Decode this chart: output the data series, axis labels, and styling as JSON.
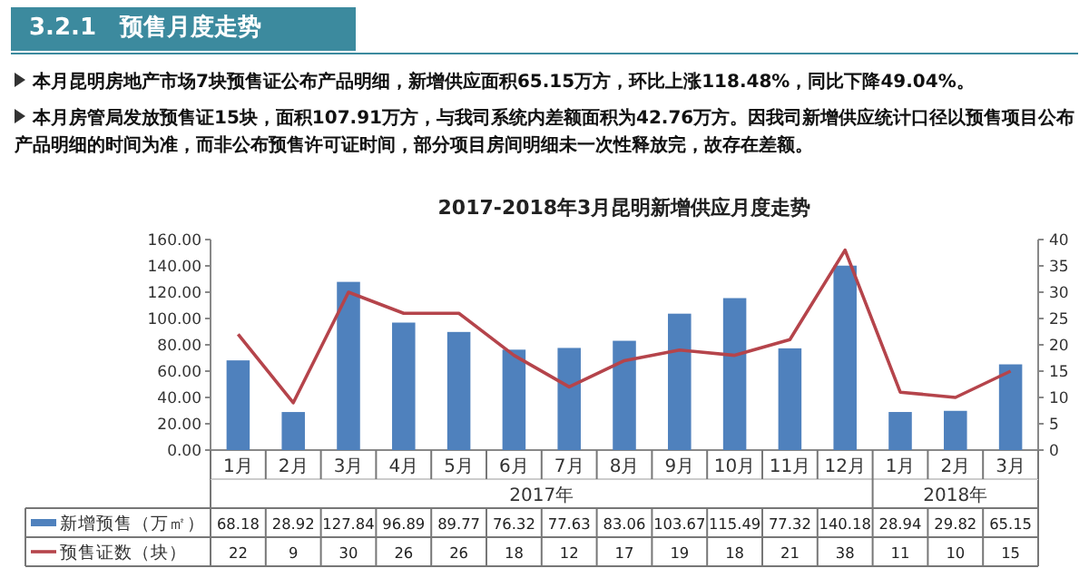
{
  "chart_data": {
    "type": "bar",
    "title": "2017-2018年3月昆明新增供应月度走势",
    "annotations": [
      "3.2.1　预售月度走势",
      "本月昆明房地产市场7块预售证公布产品明细，新增供应面积65.15万方，环比上涨118.48%，同比下降49.04%。",
      "本月房管局发放预售证15块，面积107.91万方，与我司系统内差额面积为42.76万方。因我司新增供应统计口径以预售项目公布产品明细的时间为准，而非公布预售许可证时间，部分项目房间明细未一次性释放完，故存在差额。",
      "2017年",
      "2018年"
    ],
    "categories": [
      "1月",
      "2月",
      "3月",
      "4月",
      "5月",
      "6月",
      "7月",
      "8月",
      "9月",
      "10月",
      "11月",
      "12月",
      "1月",
      "2月",
      "3月"
    ],
    "series": [
      {
        "name": "新增预售（万㎡）",
        "color": "#4f81bd",
        "values": [
          68.18,
          28.92,
          127.84,
          96.89,
          89.77,
          76.32,
          77.63,
          83.06,
          103.67,
          115.49,
          77.32,
          140.18,
          28.94,
          29.82,
          65.15
        ]
      },
      {
        "name": "预售证数（块）",
        "type": "line",
        "axis": "y2",
        "color": "#b5444b",
        "values": [
          22,
          9,
          30,
          26,
          26,
          18,
          12,
          17,
          19,
          18,
          21,
          38,
          11,
          10,
          15
        ]
      }
    ],
    "ylim": [
      0,
      160
    ],
    "yticks": [
      {
        "value": 0,
        "label": "0.00"
      },
      {
        "value": 20,
        "label": "20.00"
      },
      {
        "value": 40,
        "label": "40.00"
      },
      {
        "value": 60,
        "label": "60.00"
      },
      {
        "value": 80,
        "label": "80.00"
      },
      {
        "value": 100,
        "label": "100.00"
      },
      {
        "value": 120,
        "label": "120.00"
      },
      {
        "value": 140,
        "label": "140.00"
      },
      {
        "value": 160,
        "label": "160.00"
      }
    ],
    "y2lim": [
      0,
      40
    ],
    "y2ticks": [
      0,
      5,
      10,
      15,
      20,
      25,
      30,
      35,
      40
    ],
    "data_labels": true,
    "legend": "bottom",
    "marker": "none",
    "line_style": "solid"
  }
}
